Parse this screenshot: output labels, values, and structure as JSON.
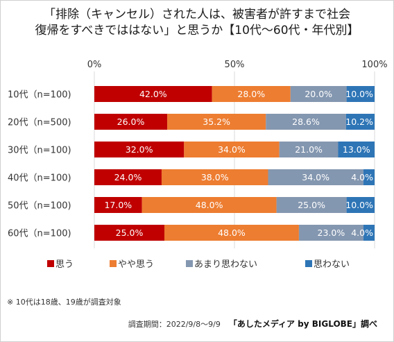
{
  "title_lines": [
    "「排除（キャンセル）された人は、被害者が許すまで社会",
    "復帰をすべきでははない」と思うか【10代〜60代・年代別】"
  ],
  "note": "※ 10代は18歳、19歳が調査対象",
  "footer": {
    "period": "調査期間：2022/9/8〜9/9",
    "credit": "「あしたメディア by BIGLOBE」調べ"
  },
  "colors": {
    "omou": "#c00000",
    "yaya": "#ed7d31",
    "amari": "#8497b0",
    "omowanai": "#2e75b6",
    "grid": "#d9d9d9"
  },
  "chart_data": {
    "type": "bar",
    "orientation": "horizontal",
    "stacked": true,
    "xlim": [
      0,
      100
    ],
    "ticks": [
      "0%",
      "50%",
      "100%"
    ],
    "tick_values": [
      0,
      50,
      100
    ],
    "grid": true,
    "legend_position": "bottom",
    "categories": [
      "10代（n=100)",
      "20代（n=500)",
      "30代（n=100)",
      "40代（n=100)",
      "50代（n=100)",
      "60代（n=100)"
    ],
    "series": [
      {
        "name": "思う",
        "color_key": "omou",
        "values": [
          42.0,
          26.0,
          32.0,
          24.0,
          17.0,
          25.0
        ],
        "labels": [
          "42.0%",
          "26.0%",
          "32.0%",
          "24.0%",
          "17.0%",
          "25.0%"
        ]
      },
      {
        "name": "やや思う",
        "color_key": "yaya",
        "values": [
          28.0,
          35.2,
          34.0,
          38.0,
          48.0,
          48.0
        ],
        "labels": [
          "28.0%",
          "35.2%",
          "34.0%",
          "38.0%",
          "48.0%",
          "48.0%"
        ]
      },
      {
        "name": "あまり思わない",
        "color_key": "amari",
        "values": [
          20.0,
          28.6,
          21.0,
          34.0,
          25.0,
          23.0
        ],
        "labels": [
          "20.0%",
          "28.6%",
          "21.0%",
          "34.0%",
          "25.0%",
          "23.0%"
        ]
      },
      {
        "name": "思わない",
        "color_key": "omowanai",
        "values": [
          10.0,
          10.2,
          13.0,
          4.0,
          10.0,
          4.0
        ],
        "labels": [
          "10.0%",
          "10.2%",
          "13.0%",
          "4.0%",
          "10.0%",
          "4.0%"
        ]
      }
    ]
  }
}
